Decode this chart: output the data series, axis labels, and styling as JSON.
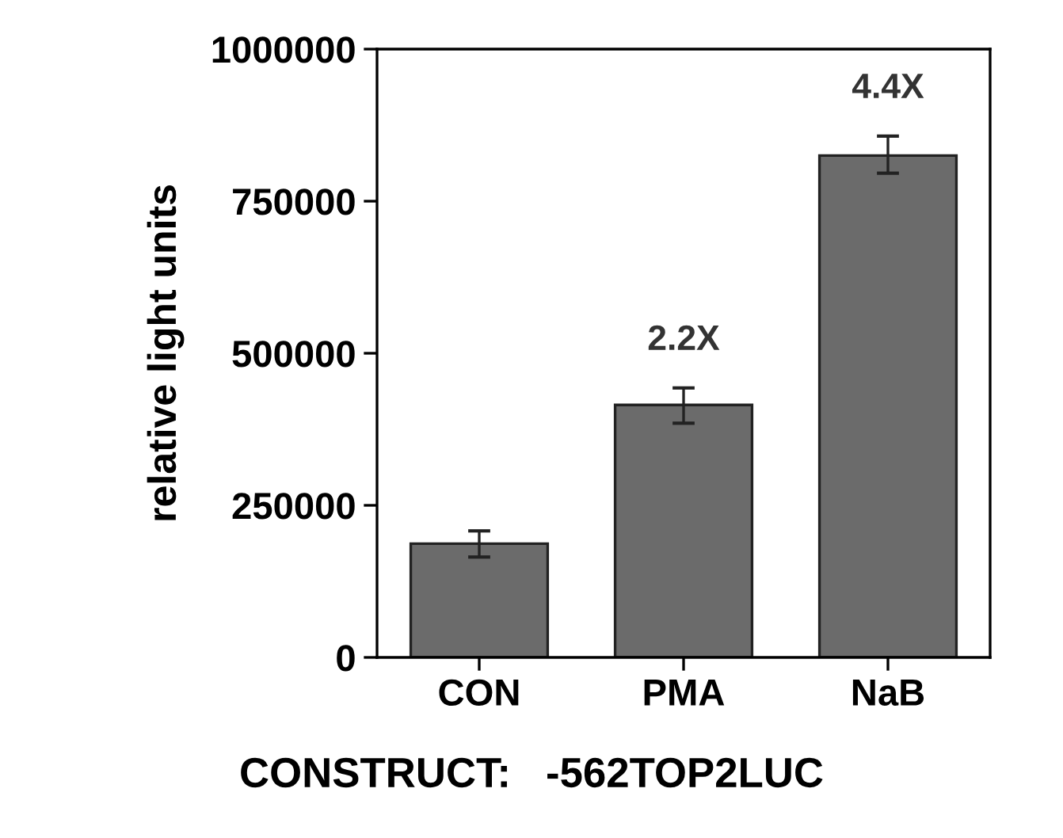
{
  "chart_data": {
    "type": "bar",
    "categories": [
      "CON",
      "PMA",
      "NaB"
    ],
    "values": [
      187000,
      415000,
      825000
    ],
    "errors": [
      [
        165000,
        208000
      ],
      [
        385000,
        443000
      ],
      [
        796000,
        857000
      ]
    ],
    "color": "#6b6b6b",
    "ylabel": "relative light units",
    "xlabel": "CONSTRUCT:   -562TOP2LUC",
    "ylim": [
      0,
      1000000
    ],
    "yticks": [
      0,
      250000,
      500000,
      750000,
      1000000
    ],
    "annotations": [
      {
        "text": "2.2X",
        "x": "PMA",
        "y": 443000
      },
      {
        "text": "4.4X",
        "x": "NaB",
        "y": 857000
      }
    ],
    "grid": false,
    "legend": false
  }
}
